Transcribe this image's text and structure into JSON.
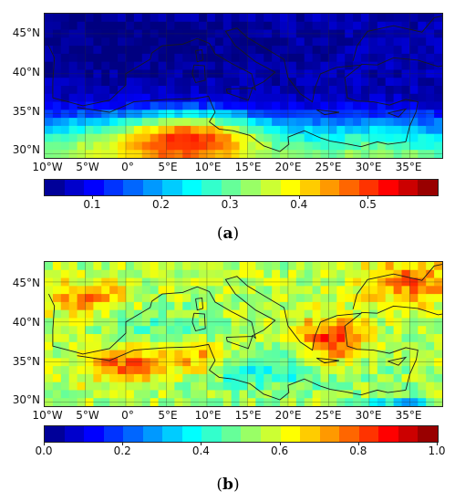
{
  "panels": [
    {
      "label_open": "(",
      "label_letter": "a",
      "label_close": ")",
      "variable_range": [
        0.03,
        0.6
      ],
      "lat_labels": [
        "45°N",
        "40°N",
        "35°N",
        "30°N"
      ],
      "lon_labels": [
        "10°W",
        "5°W",
        "0°",
        "5°E",
        "10°E",
        "15°E",
        "20°E",
        "25°E",
        "30°E",
        "35°E"
      ],
      "colorbar_ticks": [
        "0.1",
        "0.2",
        "0.3",
        "0.4",
        "0.5"
      ],
      "colorbar_tick_values": [
        0.1,
        0.2,
        0.3,
        0.4,
        0.5
      ]
    },
    {
      "label_open": "(",
      "label_letter": "b",
      "label_close": ")",
      "variable_range": [
        0.0,
        1.0
      ],
      "lat_labels": [
        "45°N",
        "40°N",
        "35°N",
        "30°N"
      ],
      "lon_labels": [
        "10°W",
        "5°W",
        "0°",
        "5°E",
        "10°E",
        "15°E",
        "20°E",
        "25°E",
        "30°E",
        "35°E"
      ],
      "colorbar_ticks": [
        "0.0",
        "0.2",
        "0.4",
        "0.6",
        "0.8",
        "1.0"
      ],
      "colorbar_tick_values": [
        0.0,
        0.2,
        0.4,
        0.6,
        0.8,
        1.0
      ]
    }
  ],
  "colormap": "jet",
  "map_extent": {
    "lon_min": -10,
    "lon_max": 39,
    "lat_min": 29.5,
    "lat_max": 47.5
  }
}
